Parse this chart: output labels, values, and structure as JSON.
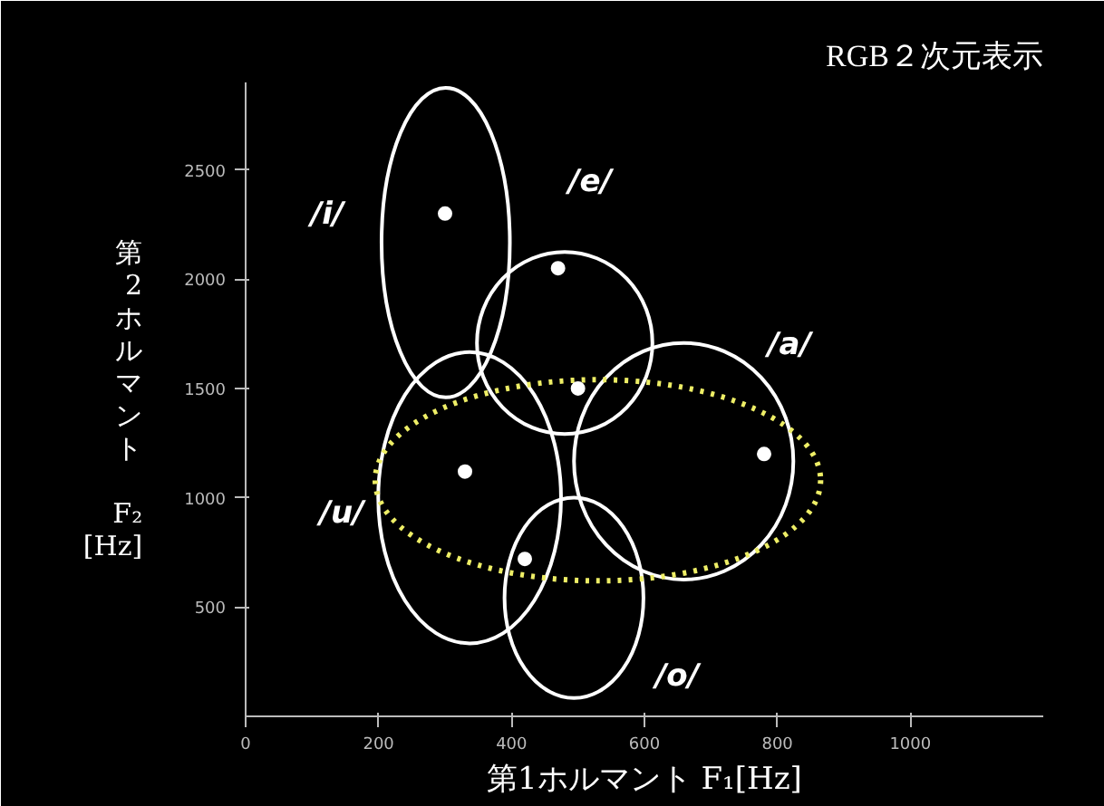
{
  "chart_data": {
    "type": "scatter",
    "title": "RGB２次元表示",
    "xlabel": "第1ホルマント F₁[Hz]",
    "ylabel": "第2ホルマント F₂ [Hz]",
    "x": [
      300,
      470,
      500,
      780,
      330,
      420
    ],
    "series": [
      {
        "color": "#ffffff",
        "values": [
          2300,
          2050,
          1500,
          1200,
          1120,
          720
        ]
      }
    ],
    "annotations": [
      "/i/",
      "/e/",
      "/a/",
      "/u/",
      "/o/"
    ],
    "xlim": [
      0,
      1200
    ],
    "ylim": [
      0,
      2900
    ],
    "xticks": [
      0,
      200,
      400,
      600,
      800,
      1000
    ],
    "yticks": [
      500,
      1000,
      1500,
      2000,
      2500
    ],
    "grid": false,
    "marker": "circle"
  }
}
